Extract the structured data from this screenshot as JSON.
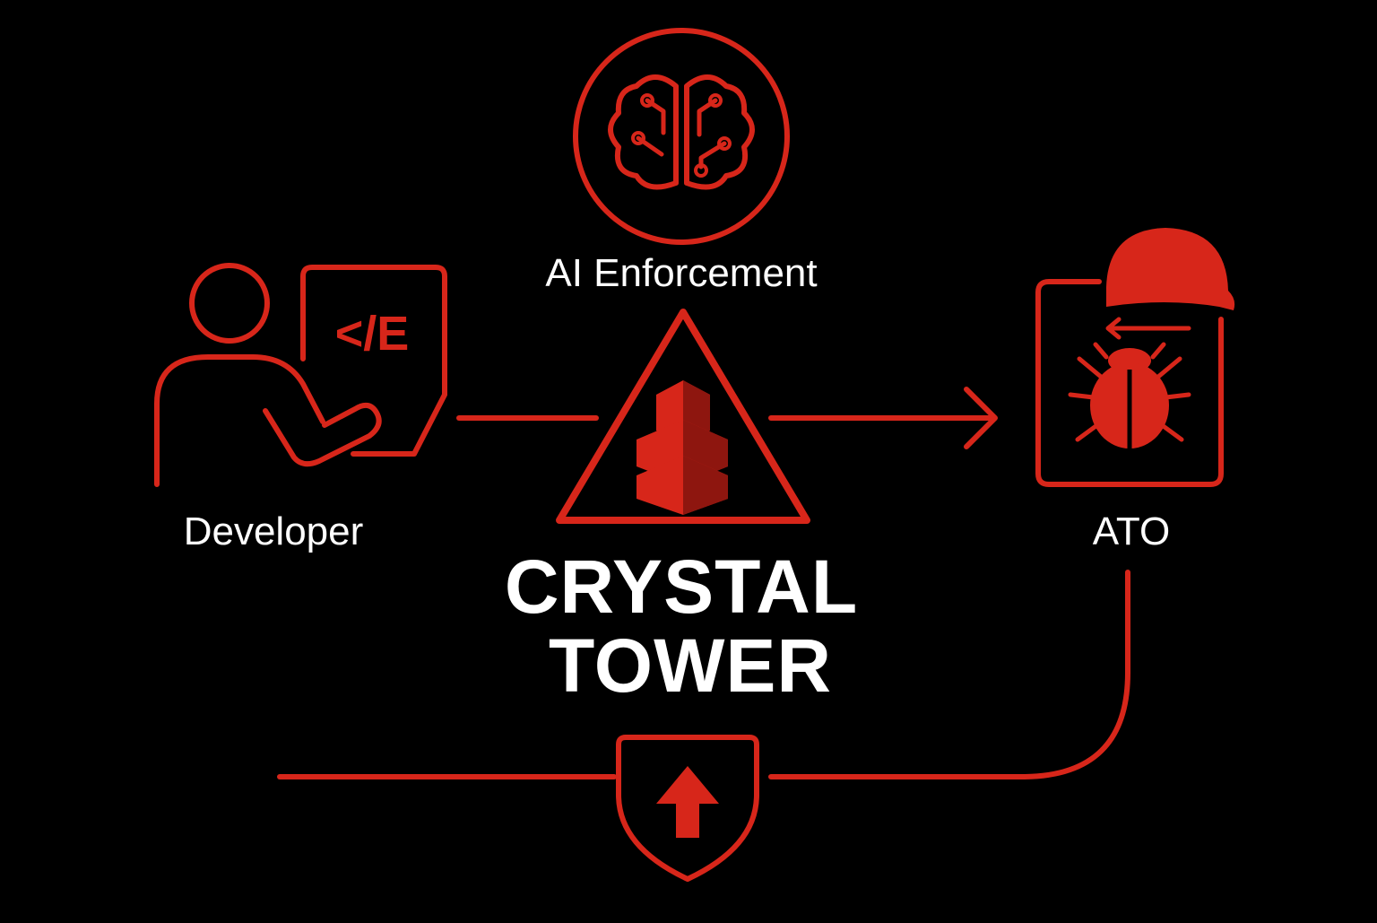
{
  "colors": {
    "background": "#000000",
    "accent": "#d7261a",
    "accent_dark": "#8e160f",
    "text": "#ffffff"
  },
  "nodes": {
    "developer": {
      "label": "Developer",
      "icon": "developer-laptop-icon",
      "code_glyph": "</E"
    },
    "ai_enforcement": {
      "label": "AI Enforcement",
      "icon": "brain-circuit-icon"
    },
    "ato": {
      "label": "ATO",
      "icon": "bug-document-icon"
    },
    "security": {
      "icon": "shield-arrow-icon"
    }
  },
  "brand": {
    "line1": "CRYSTAL",
    "line2": "TOWER",
    "icon": "tower-triangle-icon"
  }
}
